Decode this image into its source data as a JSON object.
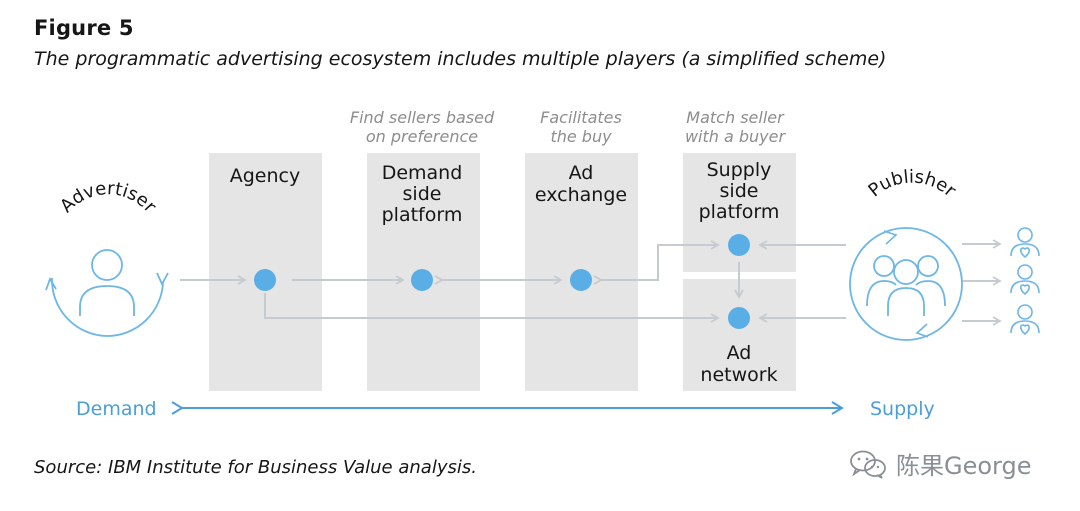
{
  "figure": {
    "label": "Figure 5",
    "title": "The programmatic advertising ecosystem includes multiple players (a simplified scheme)",
    "source": "Source: IBM Institute for Business Value analysis."
  },
  "players": {
    "advertiser": "Advertiser",
    "publisher": "Publisher",
    "agency": "Agency",
    "dsp": [
      "Demand",
      "side",
      "platform"
    ],
    "exchange": [
      "Ad",
      "exchange"
    ],
    "ssp": [
      "Supply",
      "side",
      "platform"
    ],
    "network": [
      "Ad",
      "network"
    ]
  },
  "notes": {
    "dsp": [
      "Find sellers based",
      "on preference"
    ],
    "exchange": [
      "Facilitates",
      "the buy"
    ],
    "ssp": [
      "Match seller",
      "with a buyer"
    ]
  },
  "axis": {
    "demand": "Demand",
    "supply": "Supply"
  },
  "watermark": {
    "text": "陈果George"
  },
  "colors": {
    "accent": "#4a9fd9",
    "node": "#5aaee6",
    "box": "#e5e5e5",
    "arrow": "#c6cbd1"
  }
}
